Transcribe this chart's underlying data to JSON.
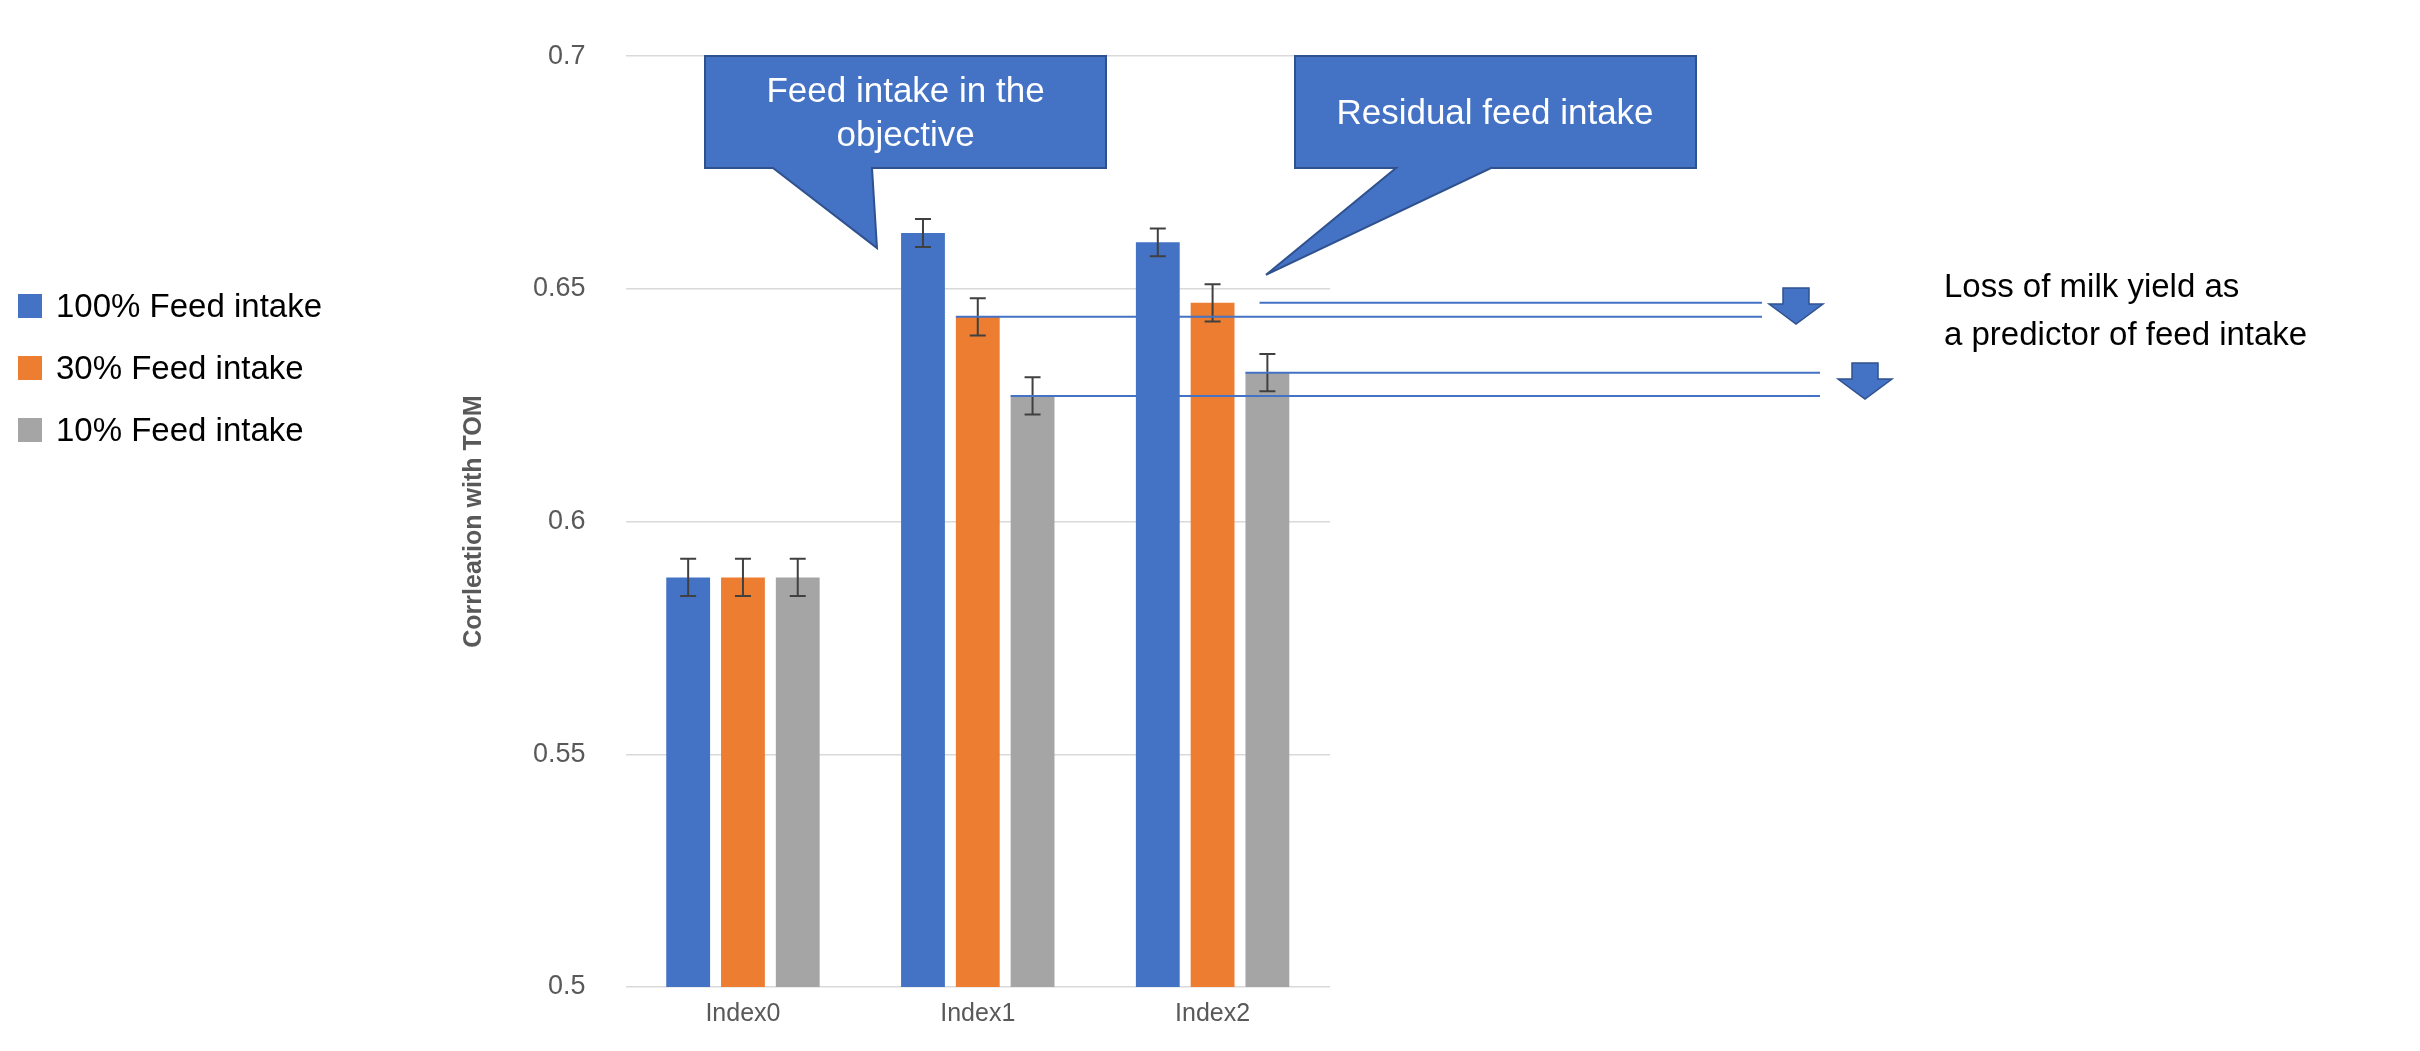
{
  "chart_data": {
    "type": "bar",
    "ylabel": "Corrleation with TOM",
    "categories": [
      "Index0",
      "Index1",
      "Index2"
    ],
    "series": [
      {
        "name": "100% Feed intake",
        "color": "#4472c4",
        "values": [
          0.588,
          0.662,
          0.66
        ],
        "errors": [
          0.004,
          0.003,
          0.003
        ]
      },
      {
        "name": "30% Feed intake",
        "color": "#ed7d31",
        "values": [
          0.588,
          0.644,
          0.647
        ],
        "errors": [
          0.004,
          0.004,
          0.004
        ]
      },
      {
        "name": "10% Feed intake",
        "color": "#a5a5a5",
        "values": [
          0.588,
          0.627,
          0.632
        ],
        "errors": [
          0.004,
          0.004,
          0.004
        ]
      }
    ],
    "ref_lines": [
      {
        "axis": "y",
        "value": 0.647,
        "color": "#4472c4"
      },
      {
        "axis": "y",
        "value": 0.644,
        "color": "#4472c4"
      },
      {
        "axis": "y",
        "value": 0.632,
        "color": "#4472c4"
      },
      {
        "axis": "y",
        "value": 0.627,
        "color": "#4472c4"
      }
    ],
    "ylim": [
      0.5,
      0.7
    ],
    "yticks": [
      0.5,
      0.55,
      0.6,
      0.65,
      0.7
    ],
    "grid": "y",
    "legend": "left",
    "annotations": [
      "Feed intake in the objective",
      "Residual feed intake",
      "Loss of milk yield as a predictor of feed intake"
    ]
  }
}
